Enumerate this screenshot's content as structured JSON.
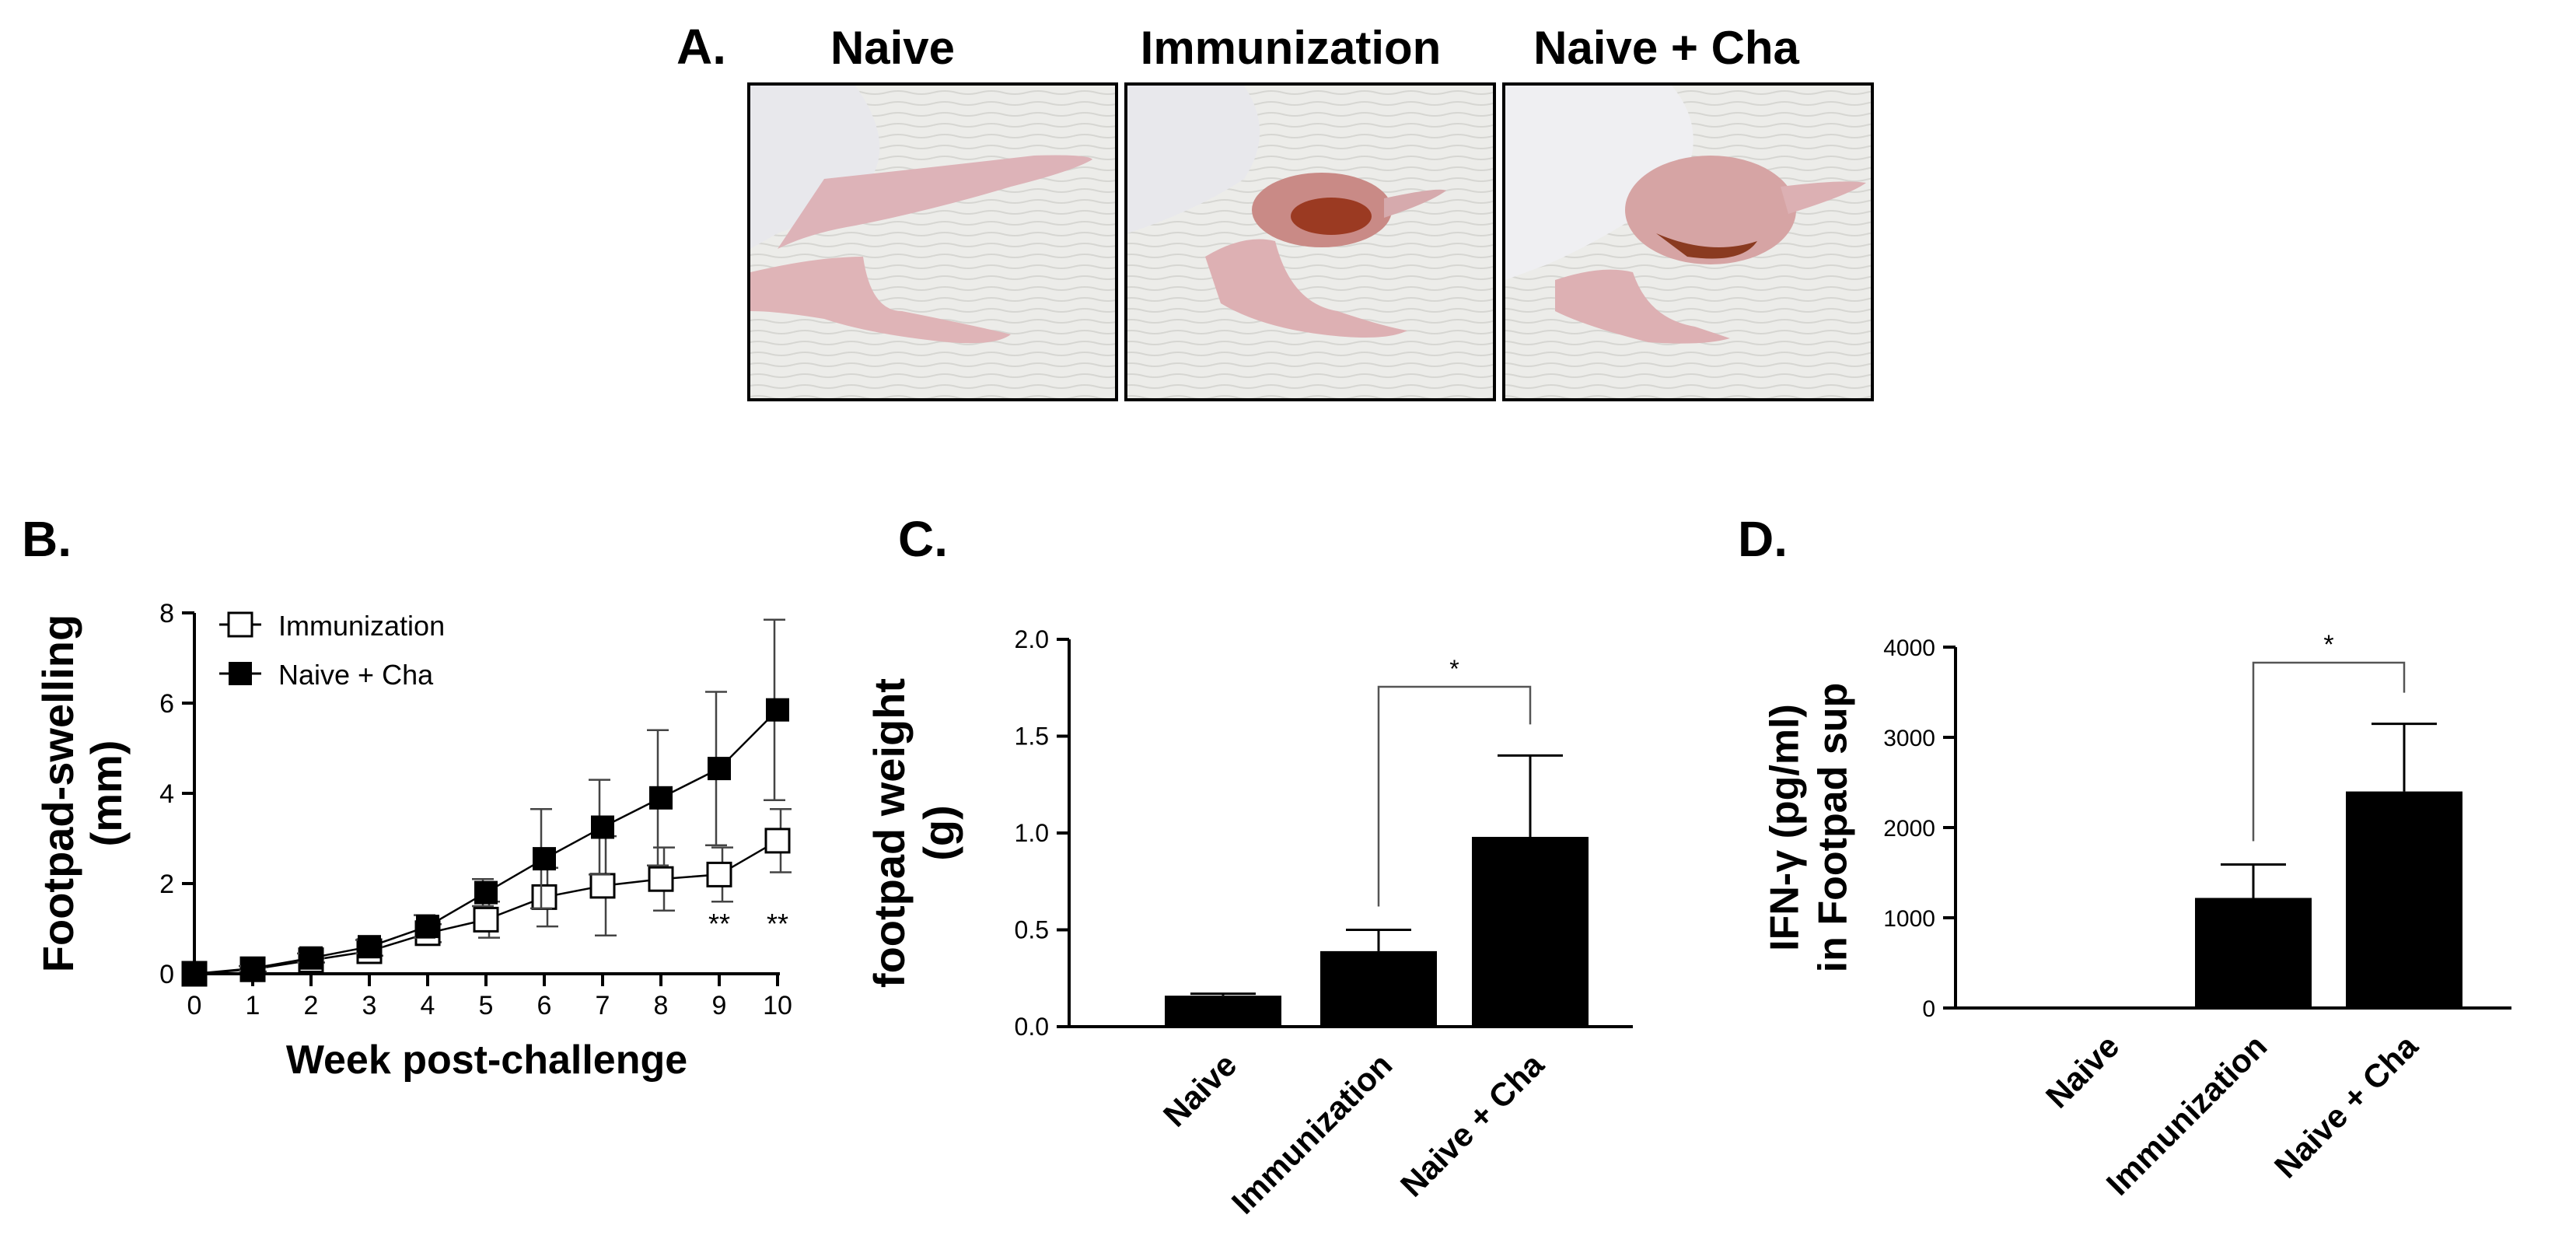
{
  "panel_a": {
    "label": "A.",
    "photos": [
      {
        "title": "Naive",
        "swelling": "none"
      },
      {
        "title": "Immunization",
        "swelling": "moderate"
      },
      {
        "title": "Naive + Cha",
        "swelling": "severe"
      }
    ]
  },
  "chart_data": [
    {
      "panel": "B.",
      "type": "line",
      "xlabel": "Week post-challenge",
      "ylabel": "Footpad-swelling\n(mm)",
      "x": [
        0,
        1,
        2,
        3,
        4,
        5,
        6,
        7,
        8,
        9,
        10
      ],
      "xlim": [
        0,
        10
      ],
      "ylim": [
        0,
        8
      ],
      "yticks": [
        0,
        2,
        4,
        6,
        8
      ],
      "legend": "top-left",
      "series": [
        {
          "name": "Immunization",
          "marker": "open-square",
          "values": [
            0,
            0.1,
            0.3,
            0.5,
            0.9,
            1.2,
            1.7,
            1.95,
            2.1,
            2.2,
            2.95
          ],
          "err": [
            0,
            0.05,
            0.05,
            0.1,
            0.2,
            0.4,
            0.65,
            1.1,
            0.7,
            0.6,
            0.7
          ]
        },
        {
          "name": "Naive + Cha",
          "marker": "filled-square",
          "values": [
            0,
            0.12,
            0.35,
            0.6,
            1.05,
            1.8,
            2.55,
            3.25,
            3.9,
            4.55,
            5.85
          ],
          "err": [
            0,
            0.05,
            0.1,
            0.15,
            0.25,
            0.3,
            1.1,
            1.05,
            1.5,
            1.7,
            2.0
          ]
        }
      ],
      "annotations": [
        {
          "x": 9,
          "text": "**"
        },
        {
          "x": 10,
          "text": "**"
        }
      ]
    },
    {
      "panel": "C.",
      "type": "bar",
      "ylabel": "footpad weight\n(g)",
      "categories": [
        "Naive",
        "Immunization",
        "Naive + Cha"
      ],
      "values": [
        0.16,
        0.39,
        0.98
      ],
      "err": [
        0.01,
        0.11,
        0.42
      ],
      "ylim": [
        0,
        2.0
      ],
      "yticks": [
        0.0,
        0.5,
        1.0,
        1.5,
        2.0
      ],
      "yticklabels": [
        "0.0",
        "0.5",
        "1.0",
        "1.5",
        "2.0"
      ],
      "significance": {
        "from": 1,
        "to": 2,
        "text": "*"
      }
    },
    {
      "panel": "D.",
      "type": "bar",
      "ylabel": "IFN-γ (pg/ml)\nin Footpad sup",
      "categories": [
        "Naive",
        "Immunization",
        "Naive + Cha"
      ],
      "values": [
        0,
        1220,
        2400
      ],
      "err": [
        0,
        370,
        750
      ],
      "ylim": [
        0,
        4000
      ],
      "yticks": [
        0,
        1000,
        2000,
        3000,
        4000
      ],
      "yticklabels": [
        "0",
        "1000",
        "2000",
        "3000",
        "4000"
      ],
      "significance": {
        "from": 1,
        "to": 2,
        "text": "*"
      }
    }
  ]
}
